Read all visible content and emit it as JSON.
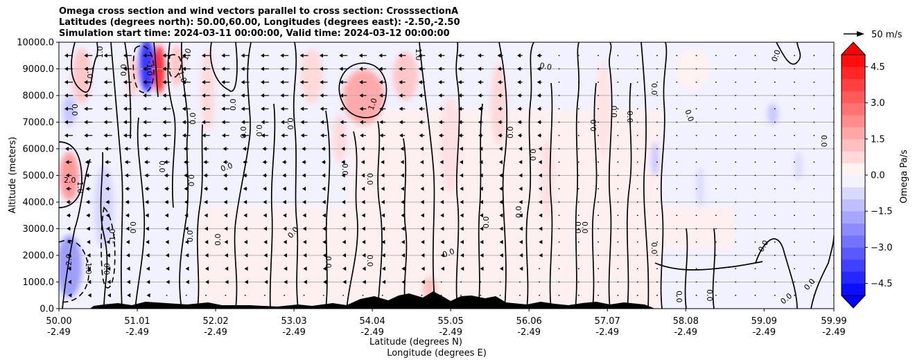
{
  "chart_data": {
    "type": "heatmap",
    "subtype": "vertical cross section with contours and wind vectors",
    "title_lines": [
      "Omega cross section and wind vectors parallel to cross section: CrosssectionA",
      "Latitudes (degrees north): 50.00,60.00, Longitudes (degrees east): -2.50,-2.50",
      "Simulation start time: 2024-03-11 00:00:00, Valid time: 2024-03-12 00:00:00"
    ],
    "xlabel_lines": [
      "Latitude (degrees N)",
      "Longitude (degrees E)"
    ],
    "ylabel": "Altitude (meters)",
    "ylim": [
      0,
      10000
    ],
    "xlim": [
      50.0,
      59.99
    ],
    "yticks": [
      "0.0",
      "1000.0",
      "2000.0",
      "3000.0",
      "4000.0",
      "5000.0",
      "6000.0",
      "7000.0",
      "8000.0",
      "9000.0",
      "10000.0"
    ],
    "xticks": [
      {
        "lat": "50.00",
        "lon": "-2.49"
      },
      {
        "lat": "51.01",
        "lon": "-2.49"
      },
      {
        "lat": "52.02",
        "lon": "-2.49"
      },
      {
        "lat": "53.03",
        "lon": "-2.49"
      },
      {
        "lat": "54.04",
        "lon": "-2.49"
      },
      {
        "lat": "55.05",
        "lon": "-2.49"
      },
      {
        "lat": "56.06",
        "lon": "-2.49"
      },
      {
        "lat": "57.07",
        "lon": "-2.49"
      },
      {
        "lat": "58.08",
        "lon": "-2.49"
      },
      {
        "lat": "59.09",
        "lon": "-2.49"
      },
      {
        "lat": "59.99",
        "lon": "-2.49"
      }
    ],
    "grid": "horizontal",
    "colorbar": {
      "label": "Omega Pa/s",
      "ticks": [
        "4.5",
        "3.0",
        "1.5",
        "0.0",
        "−1.5",
        "−3.0",
        "−4.5"
      ],
      "range": [
        -5.0,
        5.0
      ],
      "colormap": "bwr",
      "extend": "both"
    },
    "vector_key": {
      "label": "50 m/s"
    },
    "contour_labels": [
      "0.0",
      "1.0",
      "-1.0",
      "2.0",
      "-2.0"
    ],
    "annotations": [
      "2.0",
      "1.0",
      "0.0",
      "-1.0",
      "-2.0"
    ]
  },
  "colors": {
    "positive": "#ff0000",
    "negative": "#0000ff",
    "neutral": "#ffffff",
    "terrain": "#000000"
  }
}
